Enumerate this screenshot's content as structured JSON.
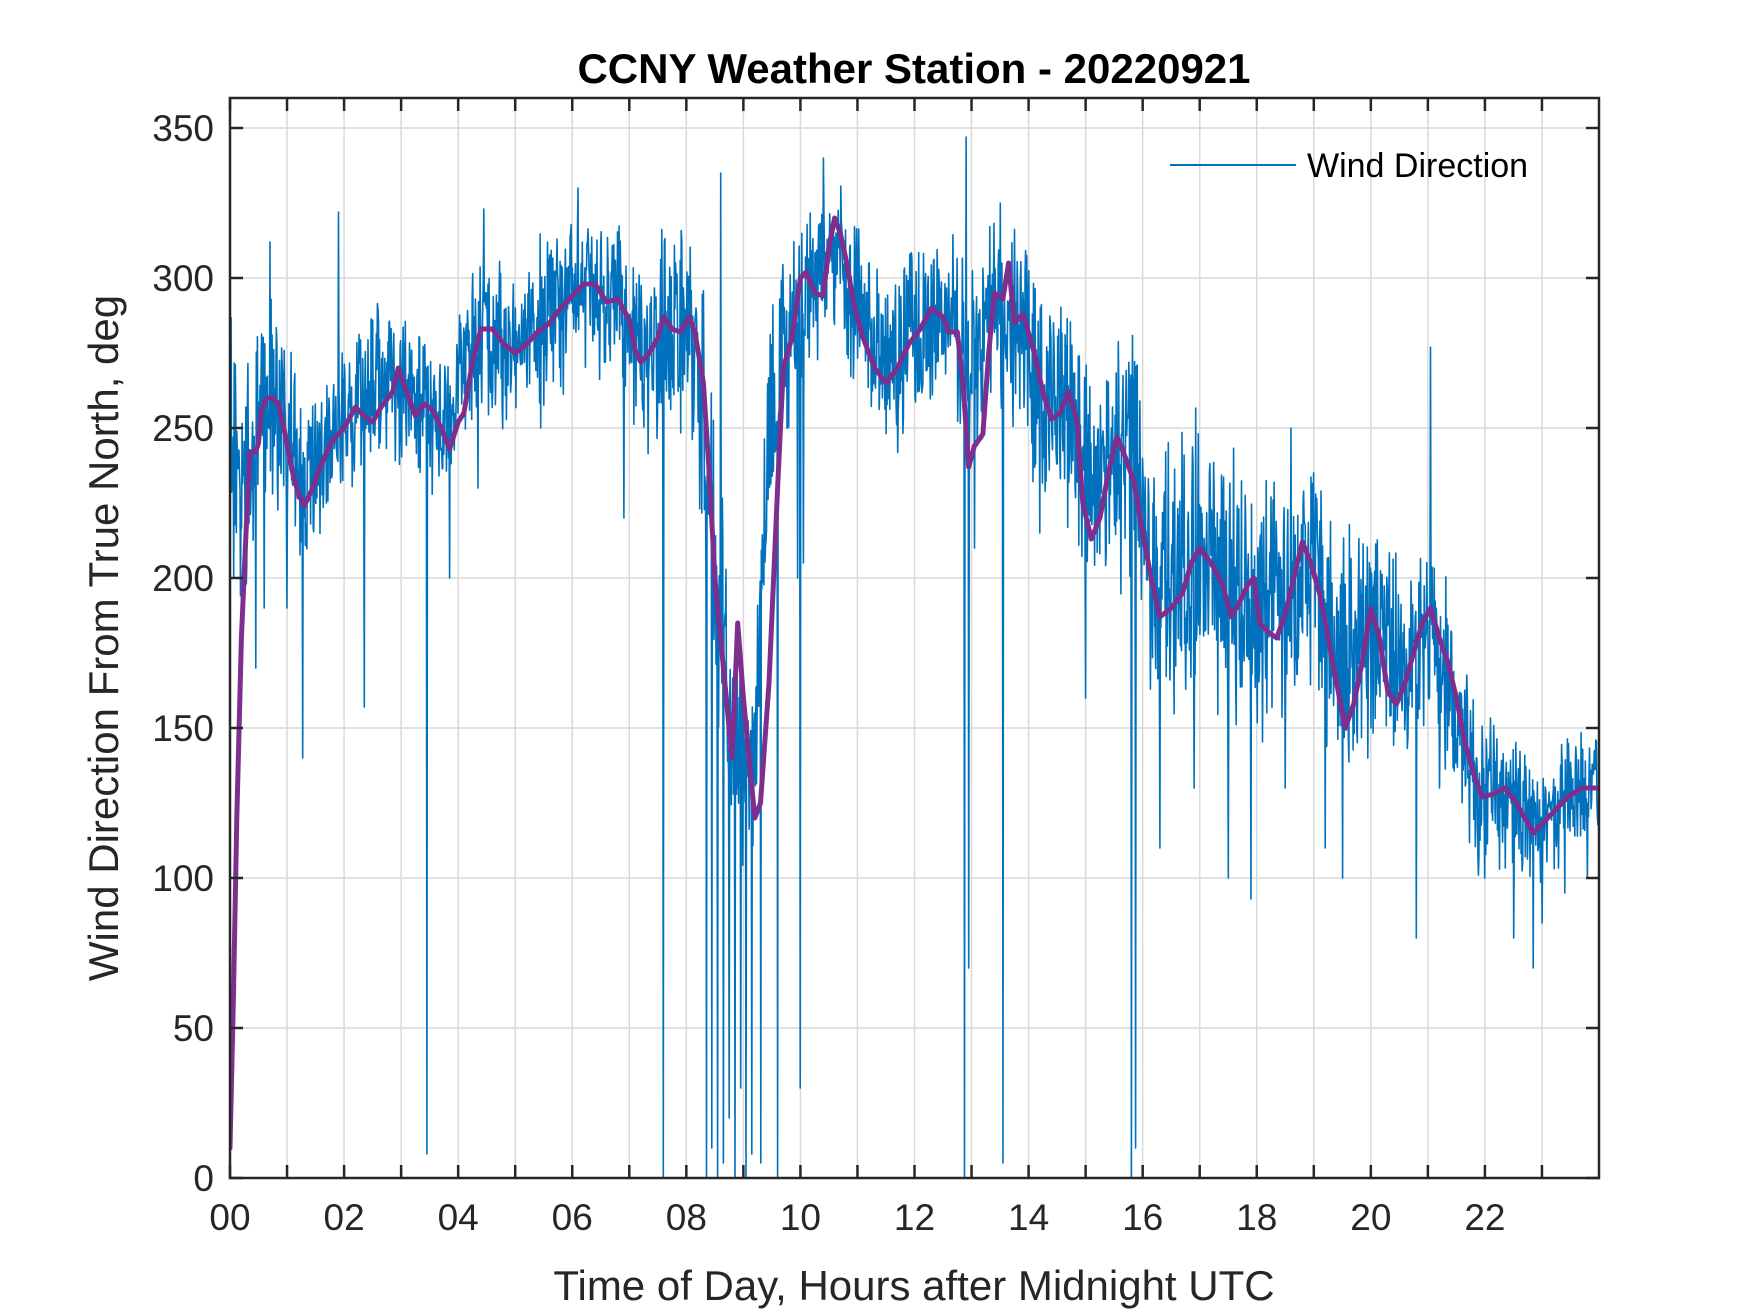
{
  "chart_data": {
    "type": "line",
    "title": "CCNY Weather Station - 20220921",
    "xlabel": "Time of Day, Hours after Midnight UTC",
    "ylabel": "Wind Direction From True North, deg",
    "xlim": [
      0,
      24
    ],
    "ylim": [
      0,
      360
    ],
    "grid": true,
    "legend_position": "top-right",
    "x_ticks": [
      0,
      2,
      4,
      6,
      8,
      10,
      12,
      14,
      16,
      18,
      20,
      22
    ],
    "x_tick_labels": [
      "00",
      "02",
      "04",
      "06",
      "08",
      "10",
      "12",
      "14",
      "16",
      "18",
      "20",
      "22"
    ],
    "x_minor_ticks": [
      1,
      3,
      5,
      7,
      9,
      11,
      13,
      15,
      17,
      19,
      21,
      23
    ],
    "y_ticks": [
      0,
      50,
      100,
      150,
      200,
      250,
      300,
      350
    ],
    "y_tick_labels": [
      "0",
      "50",
      "100",
      "150",
      "200",
      "250",
      "300",
      "350"
    ],
    "colors": {
      "raw": "#0072BD",
      "smooth": "#7E2F8E",
      "axis": "#262626",
      "grid": "#d9d9d9"
    },
    "series": [
      {
        "name": "Wind Direction",
        "kind": "raw",
        "in_legend": true,
        "base": [
          [
            0.0,
            250
          ],
          [
            0.1,
            240
          ],
          [
            0.2,
            220
          ],
          [
            0.3,
            235
          ],
          [
            0.5,
            250
          ],
          [
            0.7,
            258
          ],
          [
            1.0,
            245
          ],
          [
            1.3,
            232
          ],
          [
            1.6,
            238
          ],
          [
            2.0,
            255
          ],
          [
            2.3,
            258
          ],
          [
            2.8,
            268
          ],
          [
            3.3,
            258
          ],
          [
            3.8,
            250
          ],
          [
            4.3,
            280
          ],
          [
            4.8,
            278
          ],
          [
            5.3,
            282
          ],
          [
            5.8,
            290
          ],
          [
            6.3,
            298
          ],
          [
            6.8,
            292
          ],
          [
            7.2,
            278
          ],
          [
            7.6,
            282
          ],
          [
            8.0,
            282
          ],
          [
            8.3,
            255
          ],
          [
            8.5,
            200
          ],
          [
            8.8,
            150
          ],
          [
            9.0,
            140
          ],
          [
            9.2,
            150
          ],
          [
            9.4,
            240
          ],
          [
            9.7,
            275
          ],
          [
            10.0,
            292
          ],
          [
            10.3,
            300
          ],
          [
            10.6,
            310
          ],
          [
            11.0,
            290
          ],
          [
            11.5,
            270
          ],
          [
            12.0,
            282
          ],
          [
            12.5,
            285
          ],
          [
            13.0,
            272
          ],
          [
            13.4,
            290
          ],
          [
            13.8,
            282
          ],
          [
            14.2,
            262
          ],
          [
            14.6,
            258
          ],
          [
            15.0,
            232
          ],
          [
            15.4,
            240
          ],
          [
            15.8,
            238
          ],
          [
            16.2,
            200
          ],
          [
            16.6,
            198
          ],
          [
            17.0,
            208
          ],
          [
            17.4,
            200
          ],
          [
            17.8,
            192
          ],
          [
            18.2,
            190
          ],
          [
            18.6,
            198
          ],
          [
            19.0,
            205
          ],
          [
            19.4,
            178
          ],
          [
            19.8,
            180
          ],
          [
            20.2,
            182
          ],
          [
            20.6,
            168
          ],
          [
            21.0,
            182
          ],
          [
            21.4,
            160
          ],
          [
            21.8,
            130
          ],
          [
            22.2,
            128
          ],
          [
            22.6,
            122
          ],
          [
            23.0,
            120
          ],
          [
            23.5,
            128
          ],
          [
            24.0,
            130
          ]
        ],
        "noise": [
          [
            0.0,
            45
          ],
          [
            2.0,
            35
          ],
          [
            4.0,
            30
          ],
          [
            7.0,
            35
          ],
          [
            8.3,
            55
          ],
          [
            9.5,
            40
          ],
          [
            10.5,
            30
          ],
          [
            12.0,
            35
          ],
          [
            13.0,
            35
          ],
          [
            15.0,
            45
          ],
          [
            16.0,
            55
          ],
          [
            18.0,
            55
          ],
          [
            20.0,
            45
          ],
          [
            21.5,
            35
          ],
          [
            23.0,
            25
          ],
          [
            24.0,
            20
          ]
        ],
        "spikes": [
          [
            0.06,
            200
          ],
          [
            0.45,
            170
          ],
          [
            0.6,
            190
          ],
          [
            1.0,
            190
          ],
          [
            1.27,
            140
          ],
          [
            1.9,
            210
          ],
          [
            2.35,
            157
          ],
          [
            3.45,
            8
          ],
          [
            3.85,
            200
          ],
          [
            4.35,
            230
          ],
          [
            5.45,
            250
          ],
          [
            6.9,
            220
          ],
          [
            7.6,
            0
          ],
          [
            8.35,
            0
          ],
          [
            8.45,
            10
          ],
          [
            8.55,
            0
          ],
          [
            8.65,
            5
          ],
          [
            8.75,
            20
          ],
          [
            8.85,
            0
          ],
          [
            8.95,
            30
          ],
          [
            9.05,
            0
          ],
          [
            9.15,
            8
          ],
          [
            9.3,
            5
          ],
          [
            9.6,
            0
          ],
          [
            9.95,
            200
          ],
          [
            10.0,
            30
          ],
          [
            10.05,
            205
          ],
          [
            12.88,
            0
          ],
          [
            12.95,
            70
          ],
          [
            13.05,
            210
          ],
          [
            13.55,
            5
          ],
          [
            14.2,
            215
          ],
          [
            15.0,
            160
          ],
          [
            15.55,
            230
          ],
          [
            15.8,
            0
          ],
          [
            15.88,
            10
          ],
          [
            16.3,
            110
          ],
          [
            16.9,
            130
          ],
          [
            17.5,
            100
          ],
          [
            17.9,
            93
          ],
          [
            18.5,
            130
          ],
          [
            19.2,
            110
          ],
          [
            19.5,
            100
          ],
          [
            20.0,
            150
          ],
          [
            20.8,
            80
          ],
          [
            21.2,
            130
          ],
          [
            22.0,
            100
          ],
          [
            22.5,
            80
          ],
          [
            22.85,
            70
          ],
          [
            23.0,
            85
          ],
          [
            23.4,
            95
          ],
          [
            23.8,
            100
          ],
          [
            0.7,
            312
          ],
          [
            1.9,
            322
          ],
          [
            4.45,
            323
          ],
          [
            6.1,
            330
          ],
          [
            8.6,
            335
          ],
          [
            10.4,
            340
          ],
          [
            12.9,
            347
          ],
          [
            13.5,
            325
          ],
          [
            14.4,
            255
          ],
          [
            18.6,
            250
          ],
          [
            21.05,
            277
          ]
        ]
      },
      {
        "name": "Smoothed Wind Direction",
        "kind": "smooth",
        "in_legend": false,
        "points": [
          [
            0.0,
            10
          ],
          [
            0.06,
            60
          ],
          [
            0.12,
            120
          ],
          [
            0.2,
            180
          ],
          [
            0.28,
            215
          ],
          [
            0.35,
            242
          ],
          [
            0.45,
            242
          ],
          [
            0.5,
            245
          ],
          [
            0.55,
            256
          ],
          [
            0.65,
            260
          ],
          [
            0.75,
            260
          ],
          [
            0.85,
            258
          ],
          [
            1.0,
            245
          ],
          [
            1.1,
            235
          ],
          [
            1.2,
            228
          ],
          [
            1.3,
            224
          ],
          [
            1.45,
            230
          ],
          [
            1.6,
            238
          ],
          [
            1.8,
            246
          ],
          [
            2.0,
            250
          ],
          [
            2.2,
            257
          ],
          [
            2.35,
            254
          ],
          [
            2.5,
            252
          ],
          [
            2.65,
            257
          ],
          [
            2.85,
            262
          ],
          [
            2.95,
            270
          ],
          [
            3.1,
            262
          ],
          [
            3.25,
            254
          ],
          [
            3.4,
            258
          ],
          [
            3.55,
            256
          ],
          [
            3.7,
            250
          ],
          [
            3.85,
            243
          ],
          [
            4.0,
            252
          ],
          [
            4.1,
            255
          ],
          [
            4.25,
            272
          ],
          [
            4.4,
            283
          ],
          [
            4.6,
            283
          ],
          [
            4.8,
            278
          ],
          [
            5.0,
            275
          ],
          [
            5.2,
            278
          ],
          [
            5.4,
            282
          ],
          [
            5.6,
            285
          ],
          [
            5.8,
            290
          ],
          [
            6.0,
            294
          ],
          [
            6.2,
            298
          ],
          [
            6.4,
            298
          ],
          [
            6.6,
            292
          ],
          [
            6.8,
            293
          ],
          [
            7.0,
            286
          ],
          [
            7.1,
            276
          ],
          [
            7.2,
            272
          ],
          [
            7.35,
            275
          ],
          [
            7.5,
            280
          ],
          [
            7.6,
            287
          ],
          [
            7.75,
            283
          ],
          [
            7.9,
            282
          ],
          [
            8.05,
            287
          ],
          [
            8.15,
            282
          ],
          [
            8.3,
            265
          ],
          [
            8.4,
            235
          ],
          [
            8.5,
            200
          ],
          [
            8.6,
            180
          ],
          [
            8.7,
            160
          ],
          [
            8.8,
            140
          ],
          [
            8.9,
            185
          ],
          [
            9.0,
            160
          ],
          [
            9.1,
            140
          ],
          [
            9.2,
            120
          ],
          [
            9.3,
            125
          ],
          [
            9.45,
            165
          ],
          [
            9.6,
            230
          ],
          [
            9.7,
            270
          ],
          [
            9.85,
            280
          ],
          [
            10.0,
            300
          ],
          [
            10.1,
            302
          ],
          [
            10.25,
            295
          ],
          [
            10.4,
            294
          ],
          [
            10.5,
            310
          ],
          [
            10.6,
            320
          ],
          [
            10.7,
            315
          ],
          [
            10.8,
            306
          ],
          [
            10.95,
            290
          ],
          [
            11.1,
            280
          ],
          [
            11.3,
            270
          ],
          [
            11.5,
            265
          ],
          [
            11.7,
            270
          ],
          [
            11.9,
            278
          ],
          [
            12.1,
            283
          ],
          [
            12.3,
            290
          ],
          [
            12.5,
            287
          ],
          [
            12.6,
            282
          ],
          [
            12.75,
            282
          ],
          [
            12.85,
            265
          ],
          [
            12.95,
            237
          ],
          [
            13.05,
            244
          ],
          [
            13.2,
            248
          ],
          [
            13.3,
            275
          ],
          [
            13.4,
            295
          ],
          [
            13.55,
            293
          ],
          [
            13.65,
            305
          ],
          [
            13.75,
            285
          ],
          [
            13.9,
            288
          ],
          [
            14.1,
            275
          ],
          [
            14.25,
            262
          ],
          [
            14.4,
            253
          ],
          [
            14.55,
            255
          ],
          [
            14.7,
            262
          ],
          [
            14.85,
            252
          ],
          [
            14.95,
            225
          ],
          [
            15.1,
            213
          ],
          [
            15.25,
            220
          ],
          [
            15.4,
            235
          ],
          [
            15.55,
            247
          ],
          [
            15.7,
            240
          ],
          [
            15.85,
            232
          ],
          [
            16.0,
            215
          ],
          [
            16.15,
            200
          ],
          [
            16.3,
            187
          ],
          [
            16.5,
            190
          ],
          [
            16.7,
            195
          ],
          [
            16.85,
            205
          ],
          [
            17.0,
            210
          ],
          [
            17.2,
            205
          ],
          [
            17.4,
            198
          ],
          [
            17.55,
            187
          ],
          [
            17.7,
            192
          ],
          [
            17.85,
            198
          ],
          [
            17.95,
            200
          ],
          [
            18.05,
            185
          ],
          [
            18.2,
            182
          ],
          [
            18.35,
            180
          ],
          [
            18.5,
            188
          ],
          [
            18.65,
            200
          ],
          [
            18.8,
            212
          ],
          [
            18.95,
            205
          ],
          [
            19.1,
            195
          ],
          [
            19.25,
            180
          ],
          [
            19.45,
            160
          ],
          [
            19.55,
            150
          ],
          [
            19.7,
            158
          ],
          [
            19.85,
            172
          ],
          [
            20.0,
            190
          ],
          [
            20.15,
            180
          ],
          [
            20.3,
            162
          ],
          [
            20.45,
            158
          ],
          [
            20.6,
            165
          ],
          [
            20.75,
            175
          ],
          [
            20.9,
            185
          ],
          [
            21.05,
            190
          ],
          [
            21.2,
            180
          ],
          [
            21.35,
            172
          ],
          [
            21.5,
            160
          ],
          [
            21.65,
            145
          ],
          [
            21.8,
            135
          ],
          [
            21.95,
            127
          ],
          [
            22.15,
            128
          ],
          [
            22.35,
            130
          ],
          [
            22.55,
            125
          ],
          [
            22.7,
            120
          ],
          [
            22.85,
            115
          ],
          [
            23.0,
            118
          ],
          [
            23.2,
            122
          ],
          [
            23.45,
            127
          ],
          [
            23.7,
            130
          ],
          [
            24.0,
            130
          ]
        ]
      }
    ]
  }
}
